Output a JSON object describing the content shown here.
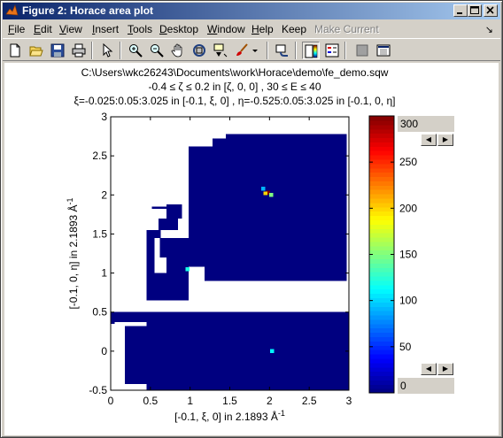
{
  "window": {
    "title": "Figure 2: Horace area plot",
    "buttons": [
      "minimize",
      "maximize",
      "close"
    ]
  },
  "menubar": {
    "items": [
      {
        "label": "File",
        "key": "F"
      },
      {
        "label": "Edit",
        "key": "E"
      },
      {
        "label": "View",
        "key": "V"
      },
      {
        "label": "Insert",
        "key": "I"
      },
      {
        "label": "Tools",
        "key": "T"
      },
      {
        "label": "Desktop",
        "key": "D"
      },
      {
        "label": "Window",
        "key": "W"
      },
      {
        "label": "Help",
        "key": "H"
      },
      {
        "label": "Keep",
        "key": ""
      },
      {
        "label": "Make Current",
        "key": "",
        "disabled": true
      }
    ],
    "dock_icon": "dock-arrow-icon"
  },
  "toolbar": {
    "icons": [
      "arrow-pointer-icon",
      "new-figure-icon",
      "open-icon",
      "save-icon",
      "print-icon",
      "select-arrow-icon",
      "zoom-in-icon",
      "zoom-out-icon",
      "pan-hand-icon",
      "rotate-3d-icon",
      "data-cursor-icon",
      "brush-icon",
      "link-plot-icon",
      "colorbar-icon",
      "legend-icon",
      "hide-plot-tools-icon",
      "show-plot-tools-icon"
    ]
  },
  "plot": {
    "title_lines": [
      "C:\\Users\\wkc26243\\Documents\\work\\Horace\\demo\\fe_demo.sqw",
      "-0.4 ≤ ζ ≤ 0.2 in [ζ, 0, 0] , 30 ≤ E ≤ 40",
      "ξ=-0.025:0.05:3.025 in [-0.1, ξ, 0] , η=-0.525:0.05:3.025 in [-0.1, 0, η]"
    ],
    "xlabel": "[-0.1, ξ, 0] in 2.1893 Å",
    "xlabel_sup": "-1",
    "ylabel": "[-0.1, 0, η] in 2.1893 Å",
    "ylabel_sup": "-1",
    "colorbar": {
      "max_value": "300",
      "min_value": "0",
      "ticks": [
        "0",
        "50",
        "100",
        "150",
        "200",
        "250",
        "300"
      ]
    }
  },
  "chart_data": {
    "type": "heatmap",
    "x": {
      "range": [
        0,
        3
      ],
      "ticks": [
        "0",
        "0.5",
        "1",
        "1.5",
        "2",
        "2.5",
        "3"
      ]
    },
    "y": {
      "range": [
        -0.5,
        3
      ],
      "ticks": [
        "-0.5",
        "0",
        "0.5",
        "1",
        "1.5",
        "2",
        "2.5",
        "3"
      ]
    },
    "color_range": [
      0,
      300
    ],
    "colormap": "jet",
    "background_value": 0,
    "masked_color": "#ffffff",
    "hot_spots": [
      {
        "x": 1.98,
        "y": 2.03,
        "value": 300
      },
      {
        "x": 1.95,
        "y": 2.02,
        "value": 200
      },
      {
        "x": 2.02,
        "y": 2.0,
        "value": 150
      },
      {
        "x": 1.92,
        "y": 2.08,
        "value": 90
      },
      {
        "x": 2.03,
        "y": 0.0,
        "value": 110
      },
      {
        "x": 0.97,
        "y": 1.05,
        "value": 120
      }
    ]
  }
}
